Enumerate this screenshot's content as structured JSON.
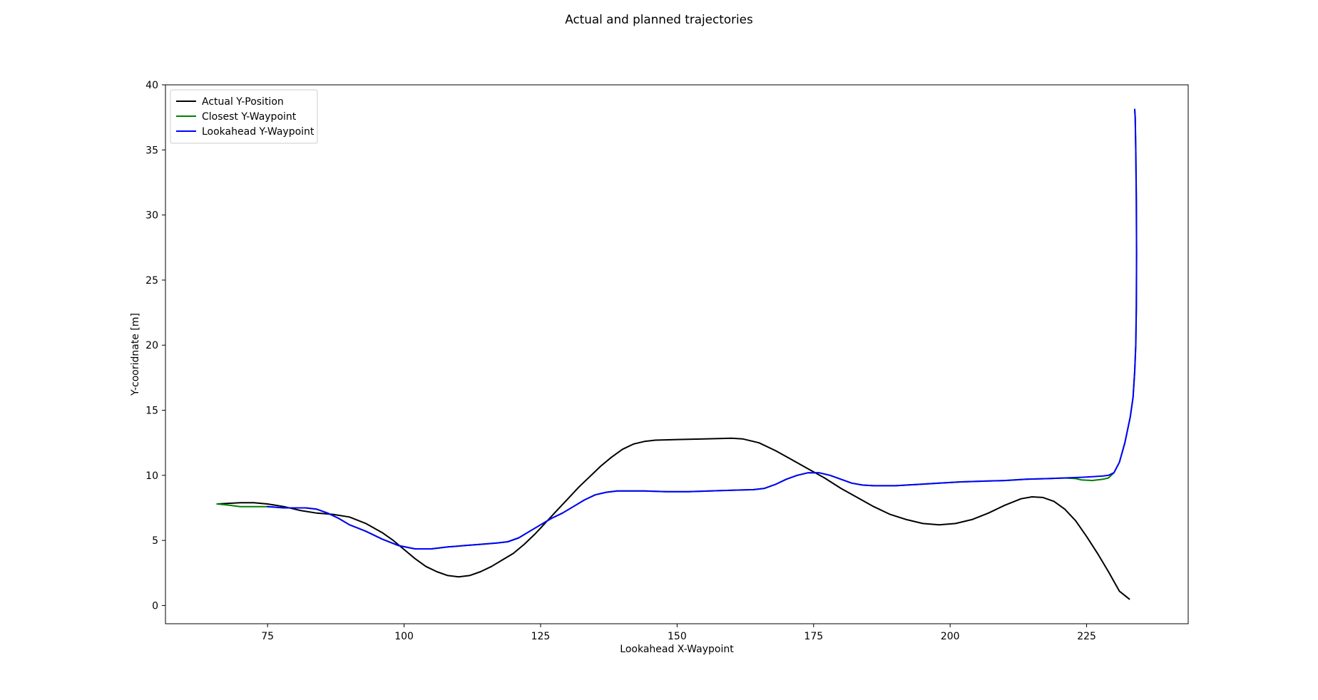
{
  "chart_data": {
    "type": "line",
    "title": "Actual and planned trajectories",
    "xlabel": "Lookahead X-Waypoint",
    "ylabel": "Y-cooridnate [m]",
    "xlim": [
      56.3,
      243.6
    ],
    "ylim": [
      -1.4,
      40
    ],
    "xticks": [
      75,
      100,
      125,
      150,
      175,
      200,
      225
    ],
    "yticks": [
      0,
      5,
      10,
      15,
      20,
      25,
      30,
      35,
      40
    ],
    "grid": false,
    "legend_position": "top-left",
    "series": [
      {
        "name": "Actual Y-Position",
        "color": "#000000",
        "x": [
          65.8,
          70,
          72.5,
          75,
          78,
          81,
          84,
          87,
          90,
          93,
          96,
          98,
          100,
          102,
          104,
          106,
          108,
          110,
          112,
          114,
          116,
          118,
          120,
          122,
          124,
          126,
          128,
          130,
          132,
          134,
          136,
          138,
          140,
          142,
          144,
          146,
          150,
          155,
          160,
          162,
          165,
          168,
          171,
          174,
          177,
          180,
          183,
          186,
          189,
          192,
          195,
          198,
          201,
          204,
          207,
          210,
          213,
          215,
          217,
          219,
          221,
          223,
          225,
          227,
          229,
          231,
          232.8
        ],
        "y": [
          7.8,
          7.9,
          7.9,
          7.8,
          7.6,
          7.3,
          7.1,
          7.0,
          6.8,
          6.3,
          5.6,
          5.0,
          4.3,
          3.6,
          3.0,
          2.6,
          2.3,
          2.2,
          2.3,
          2.6,
          3.0,
          3.5,
          4.0,
          4.7,
          5.5,
          6.4,
          7.3,
          8.2,
          9.1,
          9.9,
          10.7,
          11.4,
          12.0,
          12.4,
          12.6,
          12.7,
          12.75,
          12.8,
          12.85,
          12.8,
          12.5,
          11.9,
          11.2,
          10.5,
          9.8,
          9.0,
          8.3,
          7.6,
          7.0,
          6.6,
          6.3,
          6.2,
          6.3,
          6.6,
          7.1,
          7.7,
          8.2,
          8.35,
          8.3,
          8.0,
          7.4,
          6.5,
          5.3,
          4.0,
          2.6,
          1.1,
          0.5
        ]
      },
      {
        "name": "Closest Y-Waypoint",
        "color": "#008000",
        "x": [
          65.8,
          68,
          70,
          72,
          75,
          78,
          80,
          82,
          84,
          86,
          88,
          90,
          93,
          96,
          99,
          102,
          105,
          108,
          111,
          114,
          117,
          119,
          121,
          123,
          125,
          127,
          129,
          131,
          133,
          135,
          137,
          139,
          141,
          144,
          148,
          152,
          156,
          160,
          164,
          166,
          168,
          170,
          172,
          174,
          176,
          178,
          180,
          182,
          184,
          186,
          188,
          190,
          194,
          198,
          202,
          206,
          210,
          214,
          218,
          221,
          223,
          224,
          226,
          228,
          229,
          230,
          231,
          232,
          233,
          233.5,
          233.8,
          234,
          234.1,
          234.15,
          234.1,
          234,
          233.9,
          233.8
        ],
        "y": [
          7.8,
          7.7,
          7.6,
          7.6,
          7.6,
          7.5,
          7.5,
          7.5,
          7.4,
          7.1,
          6.7,
          6.2,
          5.7,
          5.1,
          4.6,
          4.35,
          4.35,
          4.5,
          4.6,
          4.7,
          4.8,
          4.9,
          5.2,
          5.7,
          6.2,
          6.7,
          7.1,
          7.6,
          8.1,
          8.5,
          8.7,
          8.8,
          8.8,
          8.8,
          8.75,
          8.75,
          8.8,
          8.85,
          8.9,
          9.0,
          9.3,
          9.7,
          10.0,
          10.2,
          10.2,
          10.0,
          9.7,
          9.4,
          9.25,
          9.2,
          9.2,
          9.2,
          9.3,
          9.4,
          9.5,
          9.55,
          9.6,
          9.7,
          9.75,
          9.8,
          9.75,
          9.65,
          9.6,
          9.7,
          9.8,
          10.2,
          11.0,
          12.5,
          14.5,
          16.0,
          18.0,
          20.0,
          23.0,
          27.0,
          31.0,
          35.0,
          37.5,
          38.1
        ]
      },
      {
        "name": "Lookahead Y-Waypoint",
        "color": "#0000ff",
        "x": [
          75,
          78,
          80,
          82,
          84,
          86,
          88,
          90,
          93,
          96,
          99,
          102,
          105,
          108,
          111,
          114,
          117,
          119,
          121,
          123,
          125,
          127,
          129,
          131,
          133,
          135,
          137,
          139,
          141,
          144,
          148,
          152,
          156,
          160,
          164,
          166,
          168,
          170,
          172,
          174,
          176,
          178,
          180,
          182,
          184,
          186,
          188,
          190,
          194,
          198,
          202,
          206,
          210,
          214,
          218,
          221,
          224,
          226,
          228,
          229,
          230,
          231,
          232,
          233,
          233.5,
          233.8,
          234,
          234.1,
          234.15,
          234.1,
          234,
          233.9,
          233.8
        ],
        "y": [
          7.6,
          7.5,
          7.5,
          7.5,
          7.4,
          7.1,
          6.7,
          6.2,
          5.7,
          5.1,
          4.6,
          4.35,
          4.35,
          4.5,
          4.6,
          4.7,
          4.8,
          4.9,
          5.2,
          5.7,
          6.2,
          6.7,
          7.1,
          7.6,
          8.1,
          8.5,
          8.7,
          8.8,
          8.8,
          8.8,
          8.75,
          8.75,
          8.8,
          8.85,
          8.9,
          9.0,
          9.3,
          9.7,
          10.0,
          10.2,
          10.2,
          10.0,
          9.7,
          9.4,
          9.25,
          9.2,
          9.2,
          9.2,
          9.3,
          9.4,
          9.5,
          9.55,
          9.6,
          9.7,
          9.75,
          9.8,
          9.85,
          9.9,
          9.95,
          10.0,
          10.2,
          11.0,
          12.5,
          14.5,
          16.0,
          18.0,
          20.0,
          23.0,
          27.0,
          31.0,
          35.0,
          37.5,
          38.1
        ]
      }
    ]
  }
}
